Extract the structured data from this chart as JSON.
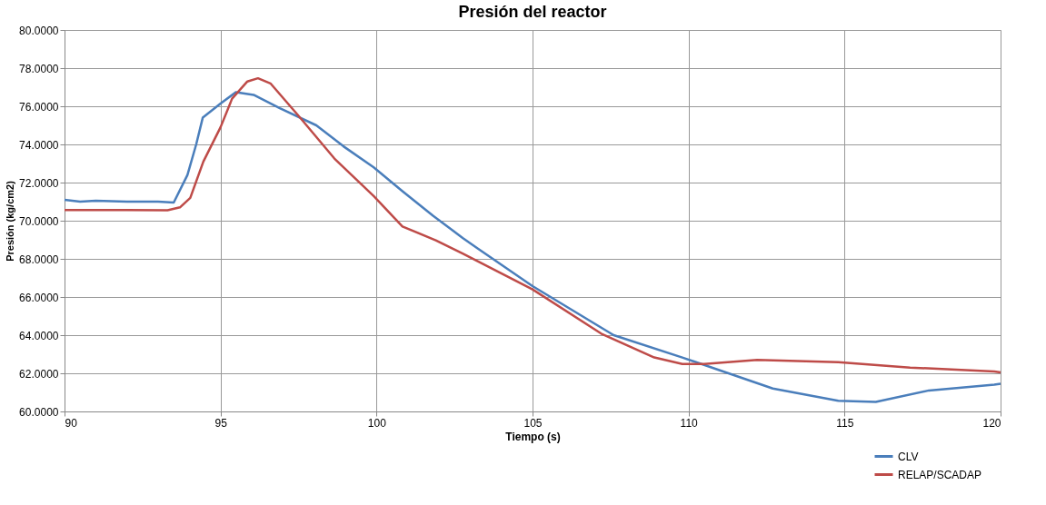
{
  "chart_data": {
    "type": "line",
    "title": "Presión del reactor",
    "xlabel": "Tiempo (s)",
    "ylabel": "Presión (kg/cm2)",
    "xlim": [
      90,
      120
    ],
    "xticks": [
      90,
      95,
      100,
      105,
      110,
      115,
      120
    ],
    "ylim": [
      60,
      80
    ],
    "yticks": [
      {
        "value": 60,
        "label": "60.0000"
      },
      {
        "value": 62,
        "label": "62.0000"
      },
      {
        "value": 64,
        "label": "64.0000"
      },
      {
        "value": 66,
        "label": "66.0000"
      },
      {
        "value": 68,
        "label": "68.0000"
      },
      {
        "value": 70,
        "label": "70.0000"
      },
      {
        "value": 72,
        "label": "72.0000"
      },
      {
        "value": 74,
        "label": "74.0000"
      },
      {
        "value": 76,
        "label": "76.0000"
      },
      {
        "value": 78,
        "label": "78.0000"
      },
      {
        "value": 80,
        "label": "80.0000"
      }
    ],
    "grid": true,
    "legend": "bottom right",
    "line_style": "solid",
    "series": [
      {
        "name": "CLV",
        "color": "#4a7ebb",
        "x": [
          90,
          90.5,
          91,
          92,
          93,
          93.5,
          93.94,
          94.22,
          94.43,
          95.0,
          95.49,
          96.06,
          96.9,
          98.07,
          98.94,
          99.91,
          100.83,
          101.81,
          102.76,
          103.25,
          105.0,
          107.6,
          109.8,
          112.7,
          114.8,
          116.0,
          117.7,
          119.8,
          120
        ],
        "values": [
          71.1,
          71.0,
          71.05,
          71.0,
          71.0,
          70.95,
          72.4,
          74.0,
          75.4,
          76.14,
          76.74,
          76.6,
          75.9,
          75.0,
          73.9,
          72.8,
          71.55,
          70.26,
          69.1,
          68.54,
          66.57,
          64.0,
          62.83,
          61.2,
          60.56,
          60.5,
          61.1,
          61.4,
          61.45
        ]
      },
      {
        "name": "RELAP/SCADAP",
        "color": "#be4b48",
        "x": [
          90,
          92,
          93.3,
          93.7,
          94.03,
          94.45,
          95.0,
          95.37,
          95.86,
          96.2,
          96.6,
          97.5,
          98.65,
          99.91,
          100.83,
          101.9,
          102.76,
          105.0,
          107.2,
          108.9,
          109.8,
          110.5,
          112.2,
          114.8,
          117.1,
          119.8,
          120
        ],
        "values": [
          70.56,
          70.56,
          70.55,
          70.7,
          71.2,
          73.1,
          74.9,
          76.4,
          77.3,
          77.47,
          77.2,
          75.5,
          73.26,
          71.29,
          69.7,
          68.97,
          68.28,
          66.4,
          64.08,
          62.83,
          62.49,
          62.49,
          62.7,
          62.58,
          62.3,
          62.1,
          62.05
        ]
      }
    ]
  }
}
